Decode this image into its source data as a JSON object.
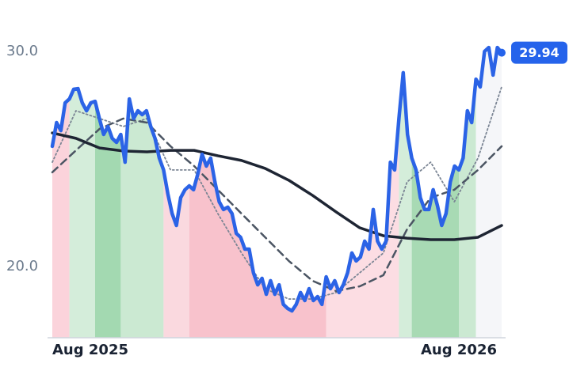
{
  "chart_data": {
    "type": "line",
    "series": [
      {
        "color": "#2b63e6",
        "width": 4.5,
        "values": [
          25.59,
          26.69,
          26.32,
          27.61,
          27.79,
          28.24,
          28.27,
          27.61,
          27.24,
          27.61,
          27.68,
          26.88,
          26.14,
          26.51,
          25.96,
          25.77,
          26.14,
          24.85,
          27.79,
          26.88,
          27.24,
          27.06,
          27.24,
          26.51,
          25.96,
          25.04,
          24.49,
          23.38,
          22.46,
          21.91,
          23.2,
          23.57,
          23.75,
          23.57,
          24.3,
          25.22,
          24.67,
          25.04,
          23.93,
          23.01,
          22.65,
          22.76,
          22.46,
          21.54,
          21.36,
          20.81,
          20.81,
          19.71,
          19.15,
          19.45,
          18.71,
          19.34,
          18.71,
          19.15,
          18.24,
          18.05,
          17.94,
          18.24,
          18.79,
          18.42,
          18.97,
          18.42,
          18.6,
          18.24,
          19.52,
          18.97,
          19.34,
          18.79,
          19.15,
          19.71,
          20.63,
          20.26,
          20.44,
          21.18,
          20.81,
          22.65,
          21.18,
          20.81,
          21.18,
          24.85,
          24.49,
          26.88,
          29.01,
          26.14,
          25.04,
          24.49,
          23.2,
          22.65,
          22.65,
          23.57,
          22.83,
          21.91,
          22.46,
          23.93,
          24.67,
          24.49,
          25.04,
          27.24,
          26.69,
          28.71,
          28.35,
          30.0,
          30.18,
          28.9,
          30.18,
          29.94
        ]
      },
      {
        "color": "#1e2533",
        "width": 3.5,
        "values": [
          26.21,
          25.96,
          25.51,
          25.37,
          25.33,
          25.4,
          25.4,
          25.15,
          24.93,
          24.56,
          24.01,
          23.31,
          22.54,
          21.8,
          21.43,
          21.32,
          21.25,
          21.25,
          21.36,
          21.91
        ]
      },
      {
        "color": "#4b5563",
        "width": 2.5,
        "dash": "9 6",
        "values": [
          24.38,
          25.4,
          26.4,
          26.88,
          26.69,
          25.59,
          24.67,
          23.57,
          22.46,
          21.36,
          20.26,
          19.34,
          18.86,
          19.08,
          19.6,
          21.73,
          23.2,
          23.57,
          24.49,
          25.59
        ]
      },
      {
        "color": "#7b8594",
        "width": 1.8,
        "dash": "2 3",
        "values": [
          24.85,
          27.24,
          26.88,
          26.51,
          26.88,
          24.49,
          24.49,
          22.46,
          20.63,
          18.97,
          18.49,
          18.49,
          18.79,
          19.71,
          20.63,
          23.93,
          24.85,
          23.01,
          25.04,
          28.35
        ]
      }
    ],
    "bands": [
      {
        "from": 0,
        "to": 4,
        "color": "#fbd3db"
      },
      {
        "from": 4,
        "to": 10,
        "color": "#d4edda"
      },
      {
        "from": 10,
        "to": 16,
        "color": "#a3d9b1"
      },
      {
        "from": 16,
        "to": 26,
        "color": "#cbe9d2"
      },
      {
        "from": 26,
        "to": 32,
        "color": "#fad9df"
      },
      {
        "from": 32,
        "to": 64,
        "color": "#f8c2cc"
      },
      {
        "from": 64,
        "to": 81,
        "color": "#fcdde3"
      },
      {
        "from": 81,
        "to": 84,
        "color": "#d4edda"
      },
      {
        "from": 84,
        "to": 95,
        "color": "#a8dab4"
      },
      {
        "from": 95,
        "to": 99,
        "color": "#cbe9d2"
      },
      {
        "from": 99,
        "to": 105,
        "color": "#f5f6f9"
      }
    ],
    "ylim": [
      16.69,
      31.5
    ],
    "yticks": [
      {
        "value": 20,
        "label": "20.0"
      },
      {
        "value": 30,
        "label": "30.0"
      }
    ],
    "xticks": [
      {
        "value": 0,
        "label": "Aug 2025"
      },
      {
        "value": 95,
        "label": "Aug 2026"
      }
    ],
    "badge_color": "#2563eb"
  }
}
